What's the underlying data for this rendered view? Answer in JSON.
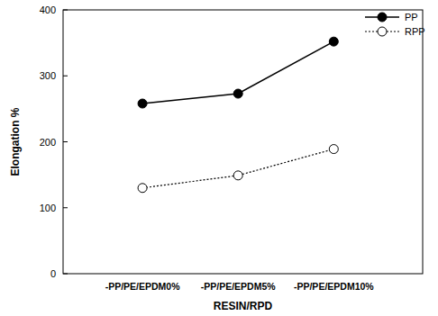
{
  "chart_data": {
    "type": "line",
    "x_label": "RESIN/RPD",
    "y_label": "Elongation %",
    "categories": [
      "-PP/PE/EPDM0%",
      "-PP/PE/EPDM5%",
      "-PP/PE/EPDM10%"
    ],
    "series": [
      {
        "name": "PP",
        "color": "#000000",
        "marker": "circle",
        "line_style": "solid",
        "values": [
          258,
          273,
          352
        ]
      },
      {
        "name": "RPP",
        "color": "#000000",
        "marker": "hollow-circle",
        "line_style": "dotted",
        "values": [
          130,
          149,
          189
        ]
      }
    ],
    "ylim": [
      0,
      400
    ],
    "yticks": [
      0,
      100,
      200,
      300,
      400
    ],
    "grid": false,
    "legend": "top-right"
  }
}
